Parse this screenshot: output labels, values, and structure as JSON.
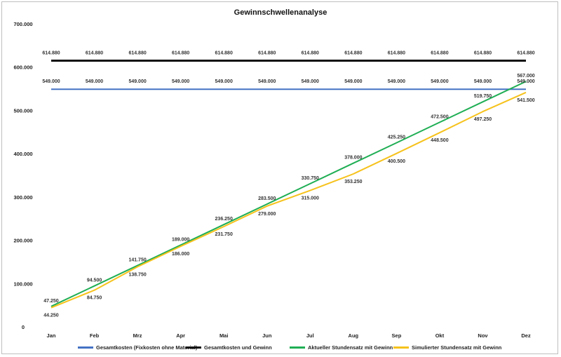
{
  "chart_data": {
    "type": "line",
    "title": "Gewinnschwellenanalyse",
    "categories": [
      "Jan",
      "Feb",
      "Mrz",
      "Apr",
      "Mai",
      "Jun",
      "Jul",
      "Aug",
      "Sep",
      "Okt",
      "Nov",
      "Dez"
    ],
    "ylim": [
      0,
      700000
    ],
    "yticks": [
      "0",
      "100.000",
      "200.000",
      "300.000",
      "400.000",
      "500.000",
      "600.000",
      "700.000"
    ],
    "grid": false,
    "legend_position": "bottom",
    "series": [
      {
        "name": "Gesamtkosten (Fixkosten ohne Material)",
        "color": "#4472c4",
        "values": [
          549000,
          549000,
          549000,
          549000,
          549000,
          549000,
          549000,
          549000,
          549000,
          549000,
          549000,
          549000
        ],
        "labels": [
          "549.000",
          "549.000",
          "549.000",
          "549.000",
          "549.000",
          "549.000",
          "549.000",
          "549.000",
          "549.000",
          "549.000",
          "549.000",
          "549.000"
        ]
      },
      {
        "name": "Gesamtkosten und Gewinn",
        "color": "#111111",
        "values": [
          614880,
          614880,
          614880,
          614880,
          614880,
          614880,
          614880,
          614880,
          614880,
          614880,
          614880,
          614880
        ],
        "labels": [
          "614.880",
          "614.880",
          "614.880",
          "614.880",
          "614.880",
          "614.880",
          "614.880",
          "614.880",
          "614.880",
          "614.880",
          "614.880",
          "614.880"
        ]
      },
      {
        "name": "Aktueller Stundensatz mit Gewinn",
        "color": "#1fae54",
        "values": [
          47250,
          94500,
          141750,
          189000,
          236250,
          283500,
          330750,
          378000,
          425250,
          472500,
          519750,
          567000
        ],
        "labels": [
          "47.250",
          "94.500",
          "141.750",
          "189.000",
          "236.250",
          "283.500",
          "330.750",
          "378.000",
          "425.250",
          "472.500",
          "519.750",
          "567.000"
        ]
      },
      {
        "name": "Simulierter Stundensatz mit Gewinn",
        "color": "#f6c21c",
        "values": [
          44250,
          84750,
          138750,
          186000,
          231750,
          279000,
          315000,
          353250,
          400500,
          448500,
          497250,
          541500
        ],
        "labels": [
          "44.250",
          "84.750",
          "138.750",
          "186.000",
          "231.750",
          "279.000",
          "315.000",
          "353.250",
          "400.500",
          "448.500",
          "497.250",
          "541.500"
        ]
      }
    ]
  }
}
